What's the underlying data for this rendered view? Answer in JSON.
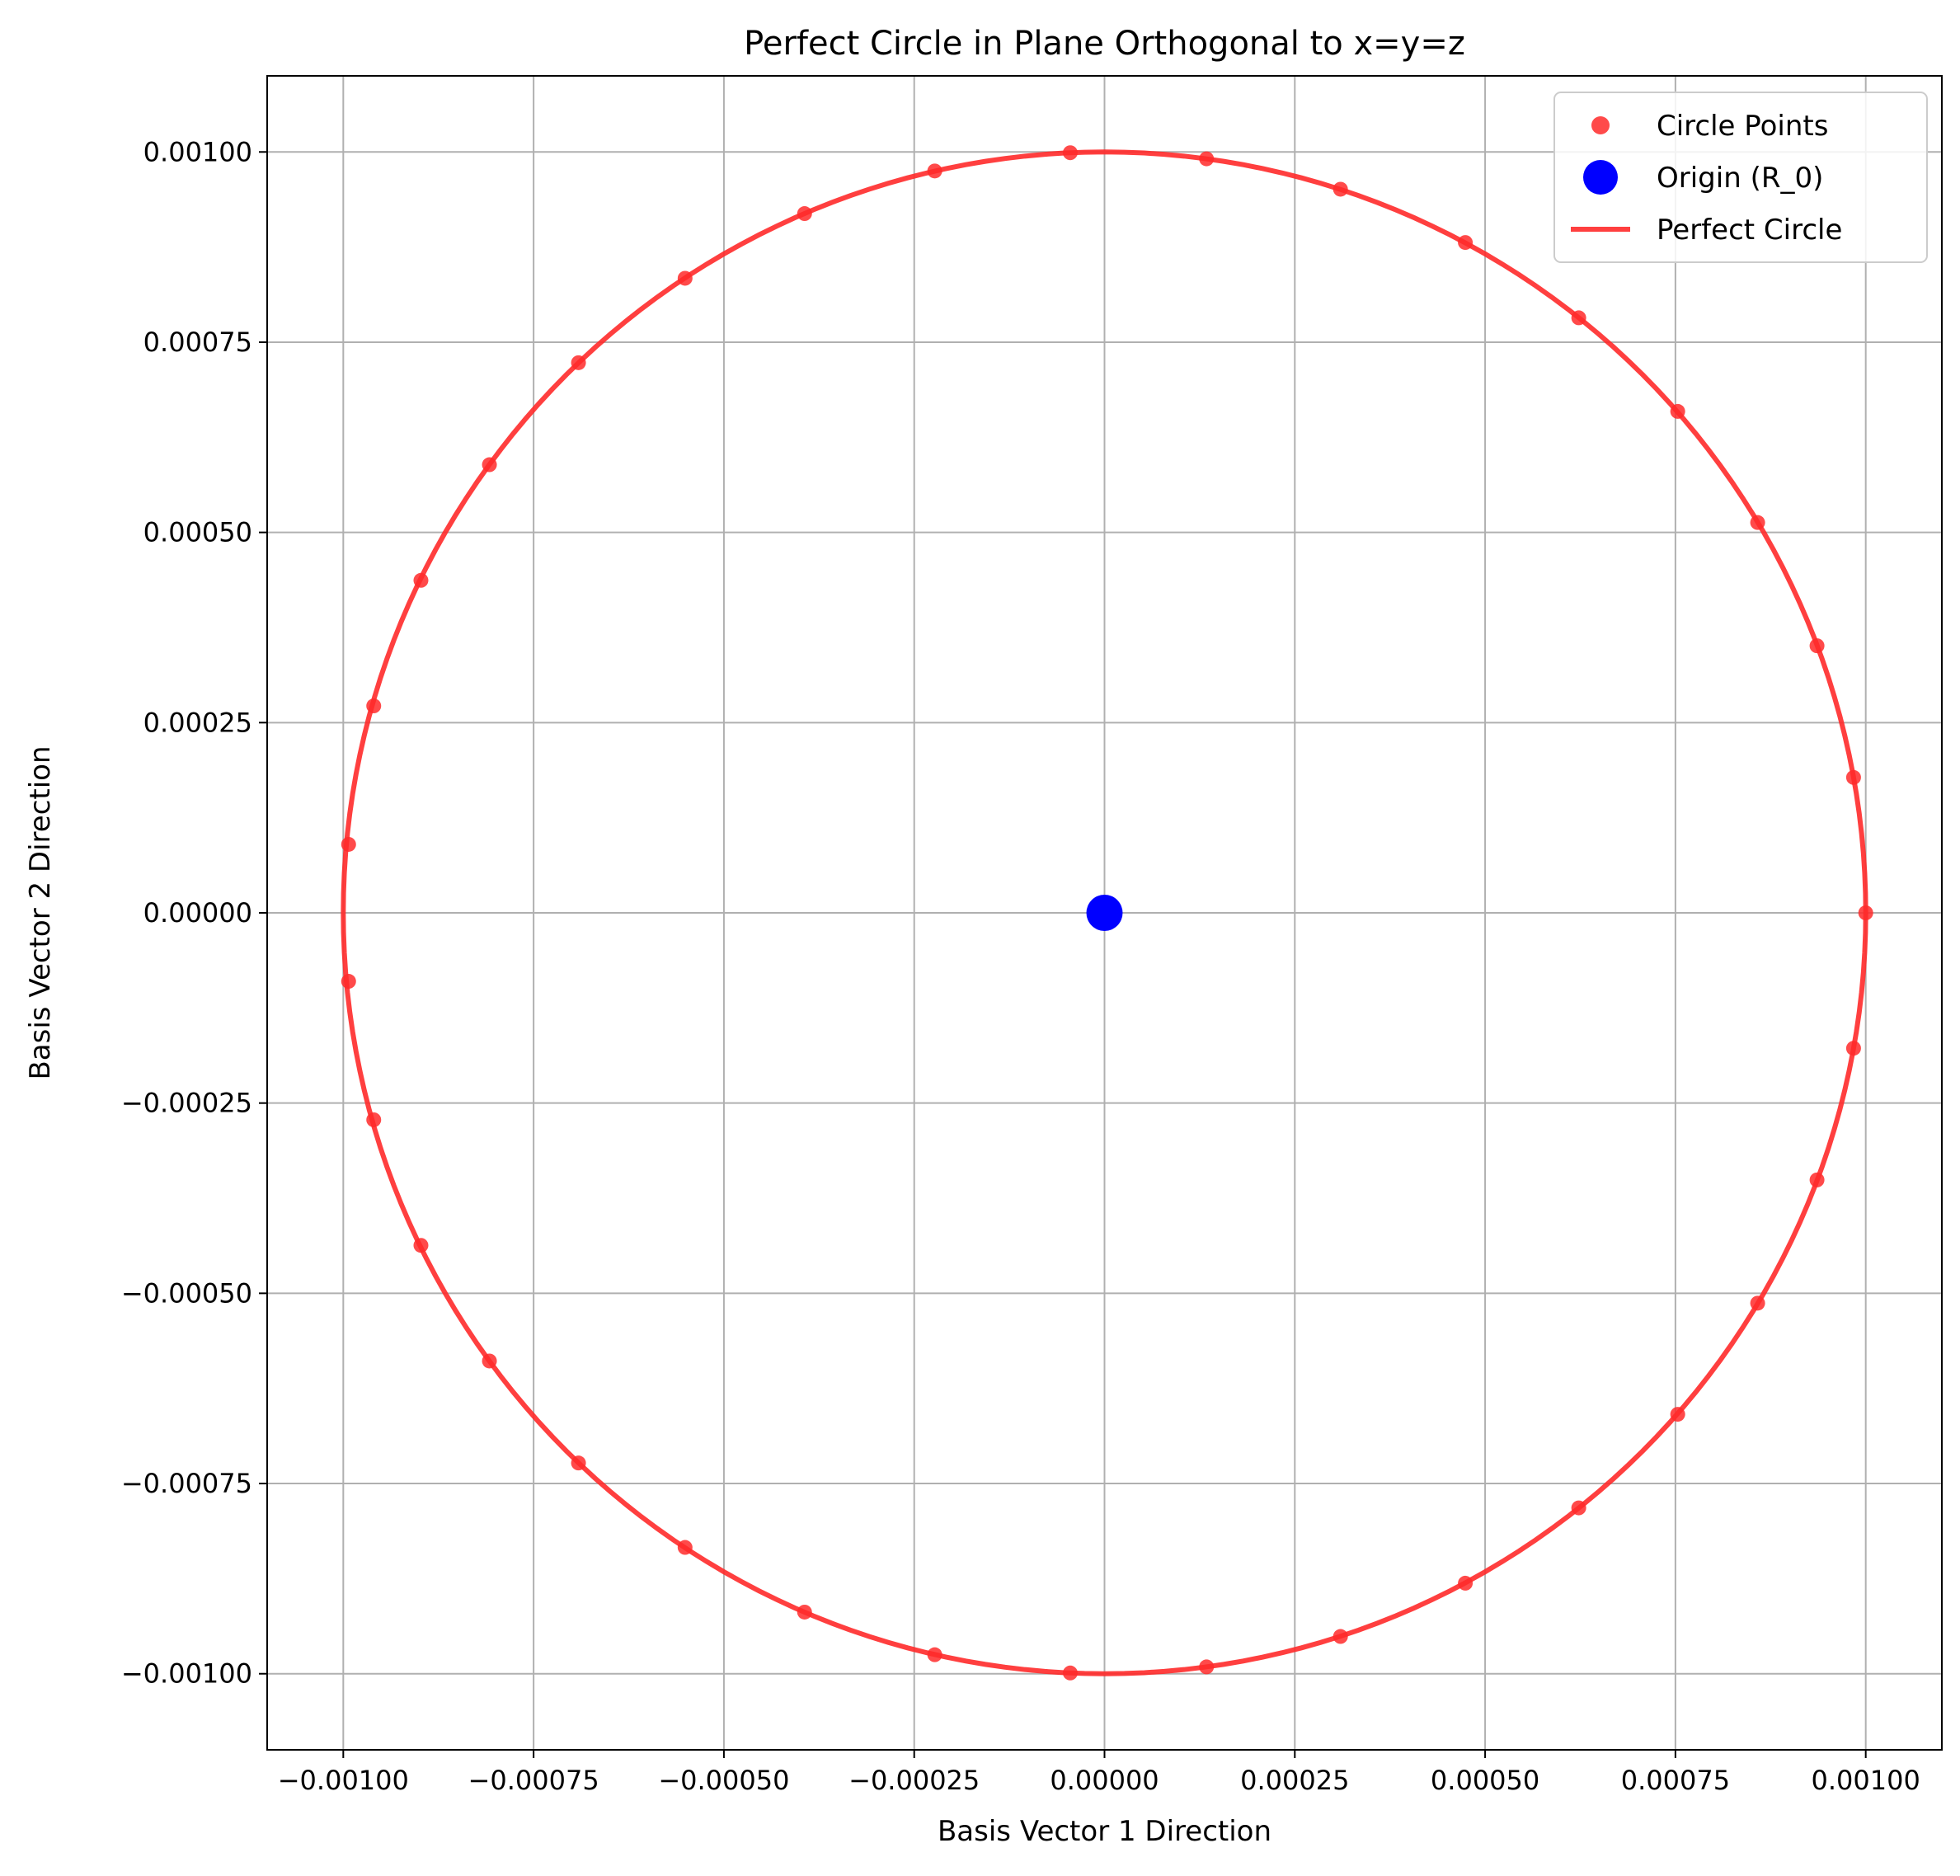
{
  "chart_data": {
    "type": "scatter",
    "title": "Perfect Circle in Plane Orthogonal to x=y=z",
    "xlabel": "Basis Vector 1 Direction",
    "ylabel": "Basis Vector 2 Direction",
    "xlim": [
      -0.0011,
      0.0011
    ],
    "ylim": [
      -0.0011,
      0.0011
    ],
    "grid": true,
    "legend_position": "top-right",
    "xticks": [
      -0.001,
      -0.00075,
      -0.0005,
      -0.00025,
      0,
      0.00025,
      0.0005,
      0.00075,
      0.001
    ],
    "xtick_labels": [
      "−0.00100",
      "−0.00075",
      "−0.00050",
      "−0.00025",
      "0.00000",
      "0.00025",
      "0.00050",
      "0.00075",
      "0.00100"
    ],
    "yticks": [
      0.001,
      0.00075,
      0.0005,
      0.00025,
      0,
      -0.00025,
      -0.0005,
      -0.00075,
      -0.001
    ],
    "ytick_labels": [
      "0.00100",
      "0.00075",
      "0.00050",
      "0.00025",
      "0.00000",
      "−0.00025",
      "−0.00050",
      "−0.00075",
      "−0.00100"
    ],
    "series": [
      {
        "name": "Circle Points",
        "kind": "scatter",
        "color": "#ff2a2a",
        "radius": 0.001,
        "point_count": 35,
        "x": [
          0.001,
          0.000984,
          0.000936,
          0.000858,
          0.000753,
          0.000623,
          0.000474,
          0.00031,
          0.000134,
          -4.5e-05,
          -0.000223,
          -0.000394,
          -0.000551,
          -0.000691,
          -0.000808,
          -0.000898,
          -0.00096,
          -0.000993,
          -0.000993,
          -0.00096,
          -0.000898,
          -0.000808,
          -0.000691,
          -0.000551,
          -0.000394,
          -0.000223,
          -4.5e-05,
          0.000134,
          0.00031,
          0.000474,
          0.000623,
          0.000753,
          0.000858,
          0.000936,
          0.000984
        ],
        "y": [
          0.0,
          0.000178,
          0.000351,
          0.000513,
          0.000659,
          0.000782,
          0.000881,
          0.000951,
          0.000991,
          0.000999,
          0.000975,
          0.000919,
          0.000834,
          0.000723,
          0.000589,
          0.000437,
          0.000272,
          9e-05,
          -9e-05,
          -0.000272,
          -0.000437,
          -0.000589,
          -0.000723,
          -0.000834,
          -0.000919,
          -0.000975,
          -0.000999,
          -0.000991,
          -0.000951,
          -0.000881,
          -0.000782,
          -0.000659,
          -0.000513,
          -0.000351,
          -0.000178
        ]
      },
      {
        "name": "Origin (R_0)",
        "kind": "scatter",
        "color": "#0000ff",
        "x": [
          0
        ],
        "y": [
          0
        ]
      },
      {
        "name": "Perfect Circle",
        "kind": "line",
        "color": "#ff2a2a",
        "center": [
          0,
          0
        ],
        "radius": 0.001
      }
    ]
  }
}
